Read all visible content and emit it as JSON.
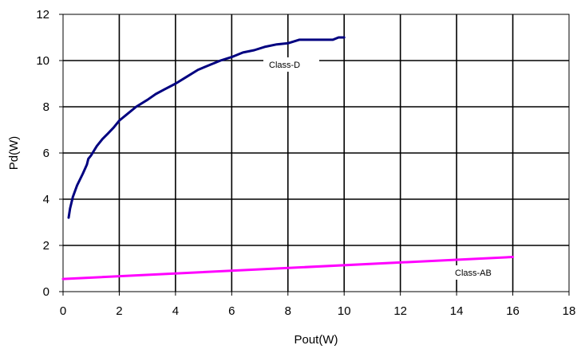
{
  "chart_data": {
    "type": "line",
    "xlabel": "Pout(W)",
    "ylabel": "Pd(W)",
    "xlim": [
      0,
      18
    ],
    "ylim": [
      0,
      12
    ],
    "xticks": [
      0,
      2,
      4,
      6,
      8,
      10,
      12,
      14,
      16,
      18
    ],
    "yticks": [
      0,
      2,
      4,
      6,
      8,
      10,
      12
    ],
    "grid": true,
    "series": [
      {
        "name": "Class-D",
        "color": "#000080",
        "x": [
          0.2,
          0.25,
          0.35,
          0.5,
          0.7,
          0.85,
          0.9,
          1.0,
          1.2,
          1.4,
          1.6,
          1.8,
          2.0,
          2.3,
          2.6,
          3.0,
          3.3,
          3.6,
          4.0,
          4.4,
          4.8,
          5.2,
          5.6,
          6.0,
          6.4,
          6.8,
          7.2,
          7.6,
          8.0,
          8.4,
          8.8,
          9.2,
          9.6,
          9.8,
          10.0
        ],
        "y": [
          3.2,
          3.6,
          4.1,
          4.6,
          5.1,
          5.5,
          5.75,
          5.9,
          6.3,
          6.6,
          6.85,
          7.1,
          7.4,
          7.7,
          8.0,
          8.3,
          8.55,
          8.75,
          9.0,
          9.3,
          9.6,
          9.8,
          10.0,
          10.15,
          10.35,
          10.45,
          10.6,
          10.7,
          10.75,
          10.9,
          10.9,
          10.9,
          10.9,
          11.0,
          11.0
        ]
      },
      {
        "name": "Class-AB",
        "color": "#ff00ff",
        "x": [
          0,
          16
        ],
        "y": [
          0.55,
          1.5
        ]
      }
    ]
  },
  "labels": {
    "class_d": "Class-D",
    "class_ab": "Class-AB"
  }
}
